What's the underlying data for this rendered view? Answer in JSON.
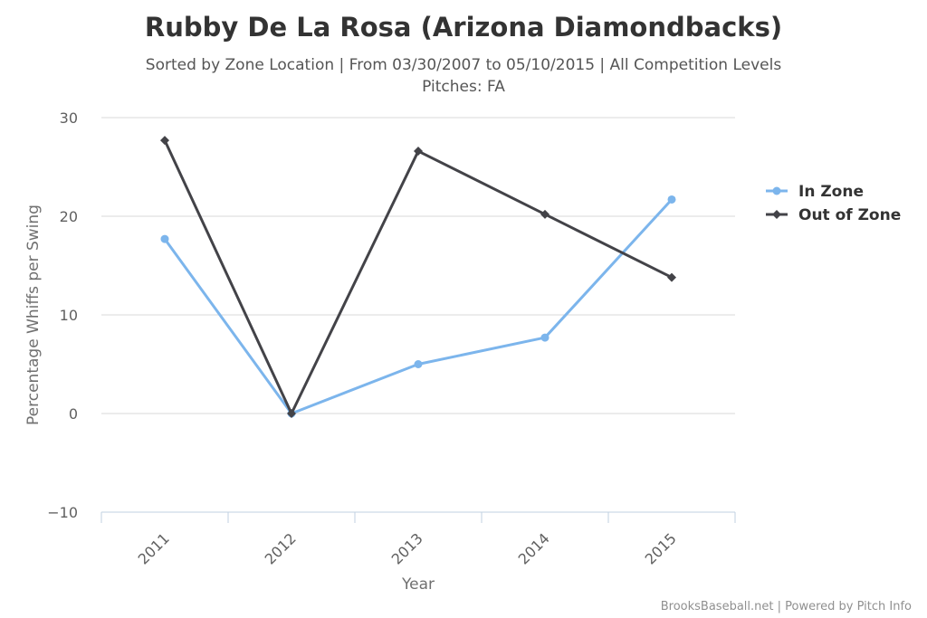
{
  "chart_data": {
    "type": "line",
    "title": "Rubby De La Rosa (Arizona Diamondbacks)",
    "subtitle_line1": "Sorted by Zone Location | From 03/30/2007 to 05/10/2015 | All Competition Levels",
    "subtitle_line2": "Pitches: FA",
    "xlabel": "Year",
    "ylabel": "Percentage Whiffs per Swing",
    "categories": [
      "2011",
      "2012",
      "2013",
      "2014",
      "2015"
    ],
    "ylim": [
      -10,
      30
    ],
    "yticks": [
      -10,
      0,
      10,
      20,
      30
    ],
    "ytick_labels": [
      "−10",
      "0",
      "10",
      "20",
      "30"
    ],
    "grid": true,
    "legend_position": "right",
    "series": [
      {
        "name": "In Zone",
        "values": [
          17.7,
          0,
          5.0,
          7.7,
          21.7
        ],
        "color": "#7cb5ec",
        "marker": "circle"
      },
      {
        "name": "Out of Zone",
        "values": [
          27.7,
          0,
          26.6,
          20.2,
          13.8
        ],
        "color": "#434348",
        "marker": "diamond"
      }
    ],
    "credit": "BrooksBaseball.net | Powered by Pitch Info"
  }
}
